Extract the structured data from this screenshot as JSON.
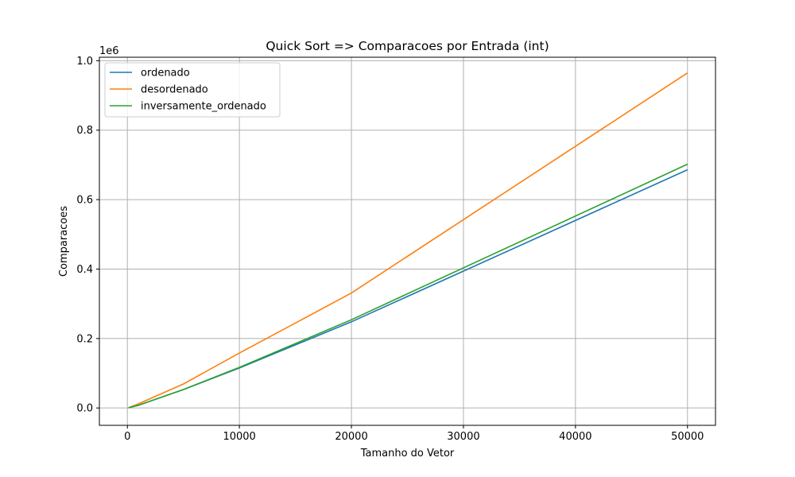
{
  "chart_data": {
    "type": "line",
    "title": "Quick Sort => Comparacoes por Entrada (int)",
    "xlabel": "Tamanho do Vetor",
    "ylabel": "Comparacoes",
    "y_offset_text": "1e6",
    "y_scale_factor": 1000000,
    "xlim": [
      -2500,
      52500
    ],
    "ylim": [
      -50000,
      1010000
    ],
    "xticks": [
      0,
      10000,
      20000,
      30000,
      40000,
      50000
    ],
    "xtick_labels": [
      "0",
      "10000",
      "20000",
      "30000",
      "40000",
      "50000"
    ],
    "yticks": [
      0,
      200000,
      400000,
      600000,
      800000,
      1000000
    ],
    "ytick_labels": [
      "0.0",
      "0.2",
      "0.4",
      "0.6",
      "0.8",
      "1.0"
    ],
    "grid": true,
    "legend_position": "upper left",
    "x": [
      100,
      1000,
      5000,
      10000,
      20000,
      50000
    ],
    "series": [
      {
        "name": "ordenado",
        "color": "#1f77b4",
        "values": [
          500,
          8000,
          53000,
          115000,
          248000,
          686000
        ]
      },
      {
        "name": "desordenado",
        "color": "#ff7f0e",
        "values": [
          700,
          12000,
          69000,
          158000,
          331000,
          965000
        ]
      },
      {
        "name": "inversamente_ordenado",
        "color": "#2ca02c",
        "values": [
          500,
          8000,
          53000,
          117000,
          254000,
          702000
        ]
      }
    ]
  }
}
